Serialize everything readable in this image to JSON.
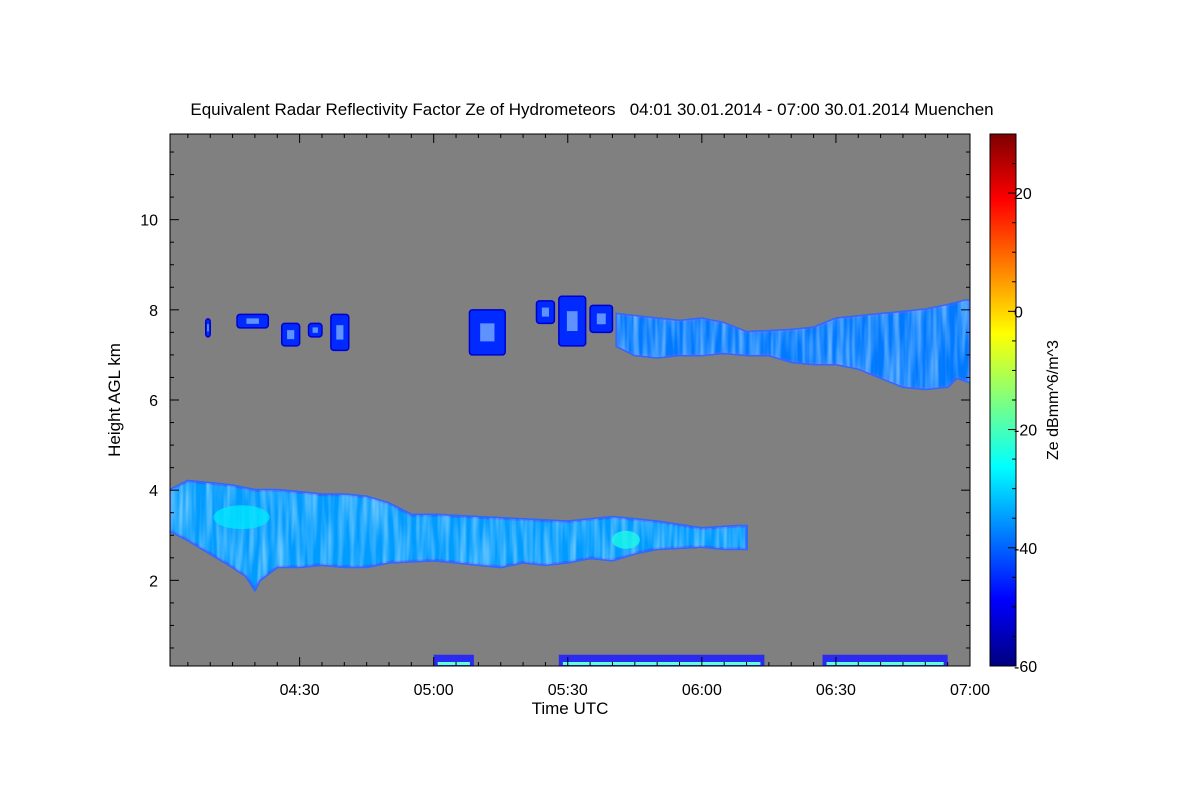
{
  "chart_data": {
    "type": "heatmap",
    "title": "Equivalent Radar Reflectivity Factor Ze of Hydrometeors   04:01 30.01.2014 - 07:00 30.01.2014 Muenchen",
    "xlabel": "Time UTC",
    "ylabel": "Height AGL km",
    "x_unit": "minutes after 04:00 UTC",
    "xlim": [
      1,
      180
    ],
    "ylim": [
      0.1,
      11.9
    ],
    "x_ticks": [
      {
        "value": 30,
        "label": "04:30"
      },
      {
        "value": 60,
        "label": "05:00"
      },
      {
        "value": 90,
        "label": "05:30"
      },
      {
        "value": 120,
        "label": "06:00"
      },
      {
        "value": 150,
        "label": "06:30"
      },
      {
        "value": 180,
        "label": "07:00"
      }
    ],
    "y_ticks": [
      {
        "value": 2,
        "label": "2"
      },
      {
        "value": 4,
        "label": "4"
      },
      {
        "value": 6,
        "label": "6"
      },
      {
        "value": 8,
        "label": "8"
      },
      {
        "value": 10,
        "label": "10"
      }
    ],
    "background_color": "#808080",
    "colorbar": {
      "label": "Ze dBmm^6/m^3",
      "range": [
        -60,
        30
      ],
      "ticks": [
        {
          "value": 20,
          "label": "20"
        },
        {
          "value": 0,
          "label": "0"
        },
        {
          "value": -20,
          "label": "-20"
        },
        {
          "value": -40,
          "label": "-40"
        },
        {
          "value": -60,
          "label": "-60"
        }
      ],
      "colormap": [
        "#00007f",
        "#0000ff",
        "#007fff",
        "#00ffff",
        "#7fff7f",
        "#ffff00",
        "#ff7f00",
        "#ff0000",
        "#7f0000"
      ]
    },
    "features": [
      {
        "name": "lower-cloud-layer",
        "ze_dbz": -35,
        "core": [
          {
            "x": 17,
            "y": 3.4,
            "ze": -28
          },
          {
            "x": 103,
            "y": 2.9,
            "ze": -24
          }
        ],
        "top": [
          [
            1,
            4.0
          ],
          [
            5,
            4.2
          ],
          [
            10,
            4.15
          ],
          [
            15,
            4.1
          ],
          [
            20,
            4.0
          ],
          [
            25,
            4.0
          ],
          [
            30,
            3.95
          ],
          [
            35,
            3.9
          ],
          [
            40,
            3.9
          ],
          [
            45,
            3.85
          ],
          [
            50,
            3.7
          ],
          [
            55,
            3.45
          ],
          [
            60,
            3.45
          ],
          [
            70,
            3.4
          ],
          [
            80,
            3.35
          ],
          [
            90,
            3.3
          ],
          [
            95,
            3.35
          ],
          [
            100,
            3.4
          ],
          [
            110,
            3.3
          ],
          [
            120,
            3.15
          ],
          [
            128,
            3.2
          ],
          [
            130,
            3.2
          ]
        ],
        "bottom": [
          [
            130,
            2.7
          ],
          [
            125,
            2.7
          ],
          [
            120,
            2.75
          ],
          [
            110,
            2.7
          ],
          [
            105,
            2.6
          ],
          [
            100,
            2.45
          ],
          [
            95,
            2.5
          ],
          [
            90,
            2.4
          ],
          [
            85,
            2.35
          ],
          [
            80,
            2.4
          ],
          [
            75,
            2.3
          ],
          [
            70,
            2.35
          ],
          [
            65,
            2.4
          ],
          [
            60,
            2.45
          ],
          [
            50,
            2.4
          ],
          [
            45,
            2.3
          ],
          [
            40,
            2.3
          ],
          [
            35,
            2.35
          ],
          [
            30,
            2.3
          ],
          [
            25,
            2.3
          ],
          [
            21,
            2.0
          ],
          [
            20,
            1.8
          ],
          [
            18,
            2.1
          ],
          [
            15,
            2.3
          ],
          [
            10,
            2.6
          ],
          [
            5,
            2.9
          ],
          [
            1,
            3.1
          ]
        ]
      },
      {
        "name": "upper-cloud-layer",
        "ze_dbz": -38,
        "top": [
          [
            101,
            7.9
          ],
          [
            110,
            7.8
          ],
          [
            115,
            7.75
          ],
          [
            120,
            7.8
          ],
          [
            125,
            7.7
          ],
          [
            130,
            7.5
          ],
          [
            140,
            7.55
          ],
          [
            145,
            7.6
          ],
          [
            150,
            7.8
          ],
          [
            160,
            7.9
          ],
          [
            170,
            8.0
          ],
          [
            175,
            8.1
          ],
          [
            179,
            8.2
          ],
          [
            180,
            8.2
          ]
        ],
        "bottom": [
          [
            180,
            6.4
          ],
          [
            177,
            6.5
          ],
          [
            175,
            6.3
          ],
          [
            170,
            6.25
          ],
          [
            165,
            6.3
          ],
          [
            160,
            6.5
          ],
          [
            155,
            6.7
          ],
          [
            150,
            6.8
          ],
          [
            145,
            6.8
          ],
          [
            140,
            6.85
          ],
          [
            135,
            7.0
          ],
          [
            130,
            7.0
          ],
          [
            125,
            7.05
          ],
          [
            120,
            7.0
          ],
          [
            115,
            7.0
          ],
          [
            110,
            6.95
          ],
          [
            105,
            7.0
          ],
          [
            101,
            7.2
          ]
        ]
      },
      {
        "name": "upper-cloud-fragments",
        "ze_dbz": -45,
        "cells": [
          {
            "x0": 9,
            "x1": 10,
            "y0": 7.4,
            "y1": 7.8
          },
          {
            "x0": 16,
            "x1": 23,
            "y0": 7.6,
            "y1": 7.9
          },
          {
            "x0": 26,
            "x1": 30,
            "y0": 7.2,
            "y1": 7.7
          },
          {
            "x0": 32,
            "x1": 35,
            "y0": 7.4,
            "y1": 7.7
          },
          {
            "x0": 37,
            "x1": 41,
            "y0": 7.1,
            "y1": 7.9
          },
          {
            "x0": 68,
            "x1": 76,
            "y0": 7.0,
            "y1": 8.0
          },
          {
            "x0": 83,
            "x1": 87,
            "y0": 7.7,
            "y1": 8.2
          },
          {
            "x0": 88,
            "x1": 94,
            "y0": 7.2,
            "y1": 8.3
          },
          {
            "x0": 95,
            "x1": 100,
            "y0": 7.5,
            "y1": 8.1
          }
        ]
      },
      {
        "name": "near-ground-clutter",
        "ze_dbz": -35,
        "segments": [
          {
            "x0": 60,
            "x1": 69,
            "y0": 0.1,
            "y1": 0.35
          },
          {
            "x0": 88,
            "x1": 134,
            "y0": 0.1,
            "y1": 0.35
          },
          {
            "x0": 147,
            "x1": 175,
            "y0": 0.1,
            "y1": 0.35
          }
        ]
      }
    ]
  }
}
